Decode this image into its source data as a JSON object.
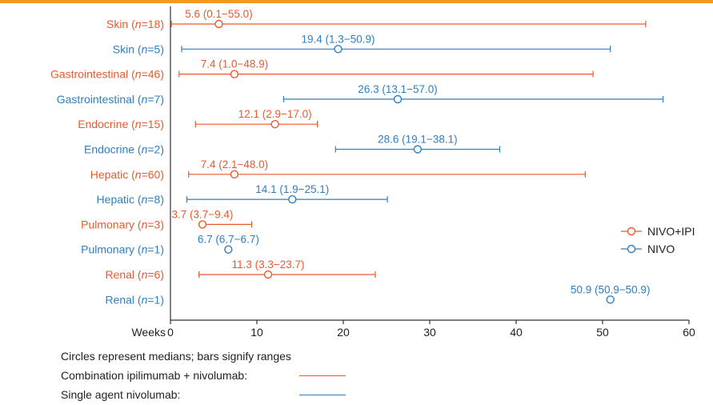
{
  "colors": {
    "combo": "#e85a2c",
    "single": "#2f7fbf",
    "axis": "#333333",
    "accent_bar": "#f29a1f"
  },
  "legend": {
    "combo_label": "NIVO+IPI",
    "single_label": "NIVO"
  },
  "footer": {
    "note": "Circles represent medians; bars signify ranges",
    "combo_text": "Combination ipilimumab + nivolumab:",
    "single_text": "Single agent nivolumab:"
  },
  "chart_data": {
    "type": "forest",
    "xlabel": "Weeks",
    "xlim": [
      0,
      60
    ],
    "xticks": [
      0,
      10,
      20,
      30,
      40,
      50,
      60
    ],
    "series": [
      {
        "name": "NIVO+IPI",
        "color_key": "combo"
      },
      {
        "name": "NIVO",
        "color_key": "single"
      }
    ],
    "rows": [
      {
        "organ": "Skin",
        "n": 18,
        "series": "NIVO+IPI",
        "median": 5.6,
        "low": 0.1,
        "high": 55.0,
        "label": "5.6 (0.1−55.0)"
      },
      {
        "organ": "Skin",
        "n": 5,
        "series": "NIVO",
        "median": 19.4,
        "low": 1.3,
        "high": 50.9,
        "label": "19.4 (1.3−50.9)"
      },
      {
        "organ": "Gastrointestinal",
        "n": 46,
        "series": "NIVO+IPI",
        "median": 7.4,
        "low": 1.0,
        "high": 48.9,
        "label": "7.4 (1.0−48.9)"
      },
      {
        "organ": "Gastrointestinal",
        "n": 7,
        "series": "NIVO",
        "median": 26.3,
        "low": 13.1,
        "high": 57.0,
        "label": "26.3 (13.1−57.0)"
      },
      {
        "organ": "Endocrine",
        "n": 15,
        "series": "NIVO+IPI",
        "median": 12.1,
        "low": 2.9,
        "high": 17.0,
        "label": "12.1 (2.9−17.0)"
      },
      {
        "organ": "Endocrine",
        "n": 2,
        "series": "NIVO",
        "median": 28.6,
        "low": 19.1,
        "high": 38.1,
        "label": "28.6 (19.1−38.1)"
      },
      {
        "organ": "Hepatic",
        "n": 60,
        "series": "NIVO+IPI",
        "median": 7.4,
        "low": 2.1,
        "high": 48.0,
        "label": "7.4 (2.1−48.0)"
      },
      {
        "organ": "Hepatic",
        "n": 8,
        "series": "NIVO",
        "median": 14.1,
        "low": 1.9,
        "high": 25.1,
        "label": "14.1 (1.9−25.1)"
      },
      {
        "organ": "Pulmonary",
        "n": 3,
        "series": "NIVO+IPI",
        "median": 3.7,
        "low": 3.7,
        "high": 9.4,
        "label": "3.7 (3.7−9.4)"
      },
      {
        "organ": "Pulmonary",
        "n": 1,
        "series": "NIVO",
        "median": 6.7,
        "low": 6.7,
        "high": 6.7,
        "label": "6.7 (6.7−6.7)"
      },
      {
        "organ": "Renal",
        "n": 6,
        "series": "NIVO+IPI",
        "median": 11.3,
        "low": 3.3,
        "high": 23.7,
        "label": "11.3 (3.3−23.7)"
      },
      {
        "organ": "Renal",
        "n": 1,
        "series": "NIVO",
        "median": 50.9,
        "low": 50.9,
        "high": 50.9,
        "label": "50.9 (50.9−50.9)"
      }
    ]
  }
}
